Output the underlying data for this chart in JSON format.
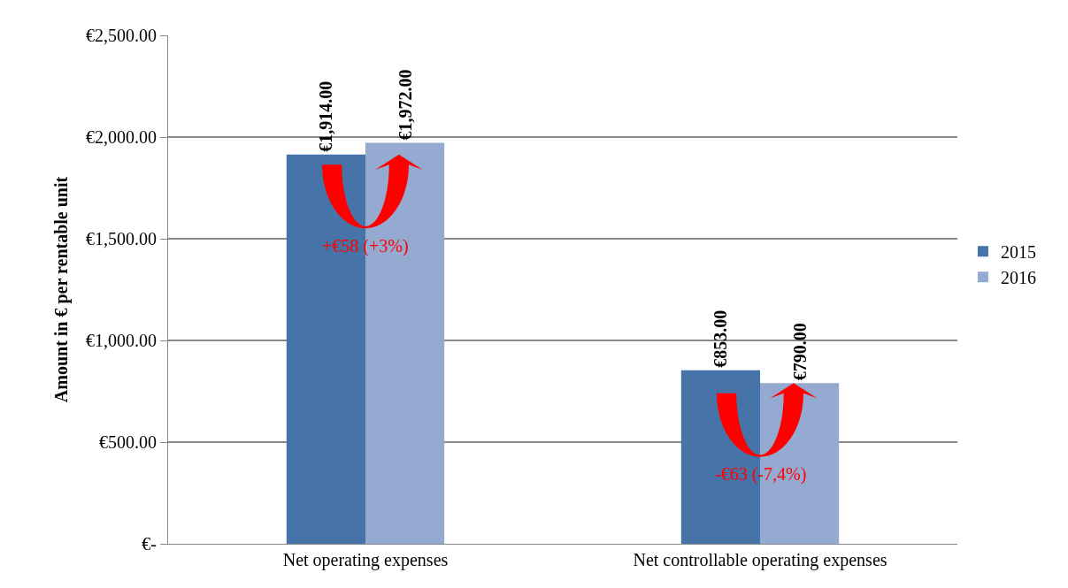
{
  "chart_data": {
    "type": "bar",
    "ylabel": "Amount in € per rentable unit",
    "categories": [
      "Net operating expenses",
      "Net controllable operating expenses"
    ],
    "series": [
      {
        "name": "2015",
        "color": "#4674a8",
        "values": [
          1914,
          853
        ],
        "value_labels": [
          "€1,914.00",
          "€853.00"
        ]
      },
      {
        "name": "2016",
        "color": "#95aad1",
        "values": [
          1972,
          790
        ],
        "value_labels": [
          "€1,972.00",
          "€790.00"
        ]
      }
    ],
    "ylim": [
      0,
      2500
    ],
    "yticks": [
      {
        "value": 0,
        "label": "€-"
      },
      {
        "value": 500,
        "label": "€500.00"
      },
      {
        "value": 1000,
        "label": "€1,000.00"
      },
      {
        "value": 1500,
        "label": "€1,500.00"
      },
      {
        "value": 2000,
        "label": "€2,000.00"
      },
      {
        "value": 2500,
        "label": "€2,500.00"
      }
    ],
    "annotations": [
      "+€58 (+3%)",
      "-€63 (-7,4%)"
    ],
    "grid": "y",
    "legend": "right"
  }
}
